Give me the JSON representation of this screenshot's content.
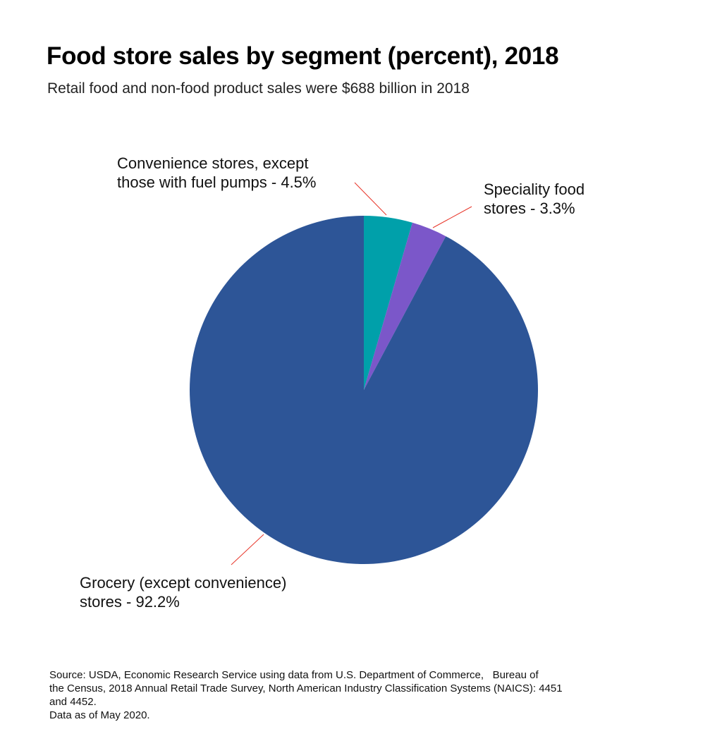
{
  "header": {
    "title": "Food store sales by segment (percent), 2018",
    "subtitle": "Retail food and non-food product sales were $688 billion in 2018"
  },
  "chart_data": {
    "type": "pie",
    "start_angle": "12 o'clock",
    "direction": "clockwise",
    "slices": [
      {
        "label_lines": [
          "Convenience stores, except",
          "those with fuel pumps - 4.5%"
        ],
        "value": 4.5,
        "color": "#00A0AA"
      },
      {
        "label_lines": [
          "Speciality food",
          "stores - 3.3%"
        ],
        "value": 3.3,
        "color": "#7B57C9"
      },
      {
        "label_lines": [
          "Grocery (except convenience)",
          "stores - 92.2%"
        ],
        "value": 92.2,
        "color": "#2D5597"
      }
    ],
    "leader_line_color": "#E8362A"
  },
  "footer": {
    "source_lines": [
      "Source: USDA, Economic Research Service using data from U.S. Department of Commerce,   Bureau of",
      "the Census, 2018 Annual Retail Trade Survey, North American Industry Classification Systems (NAICS): 4451",
      "and 4452.",
      "Data as of May 2020."
    ]
  }
}
